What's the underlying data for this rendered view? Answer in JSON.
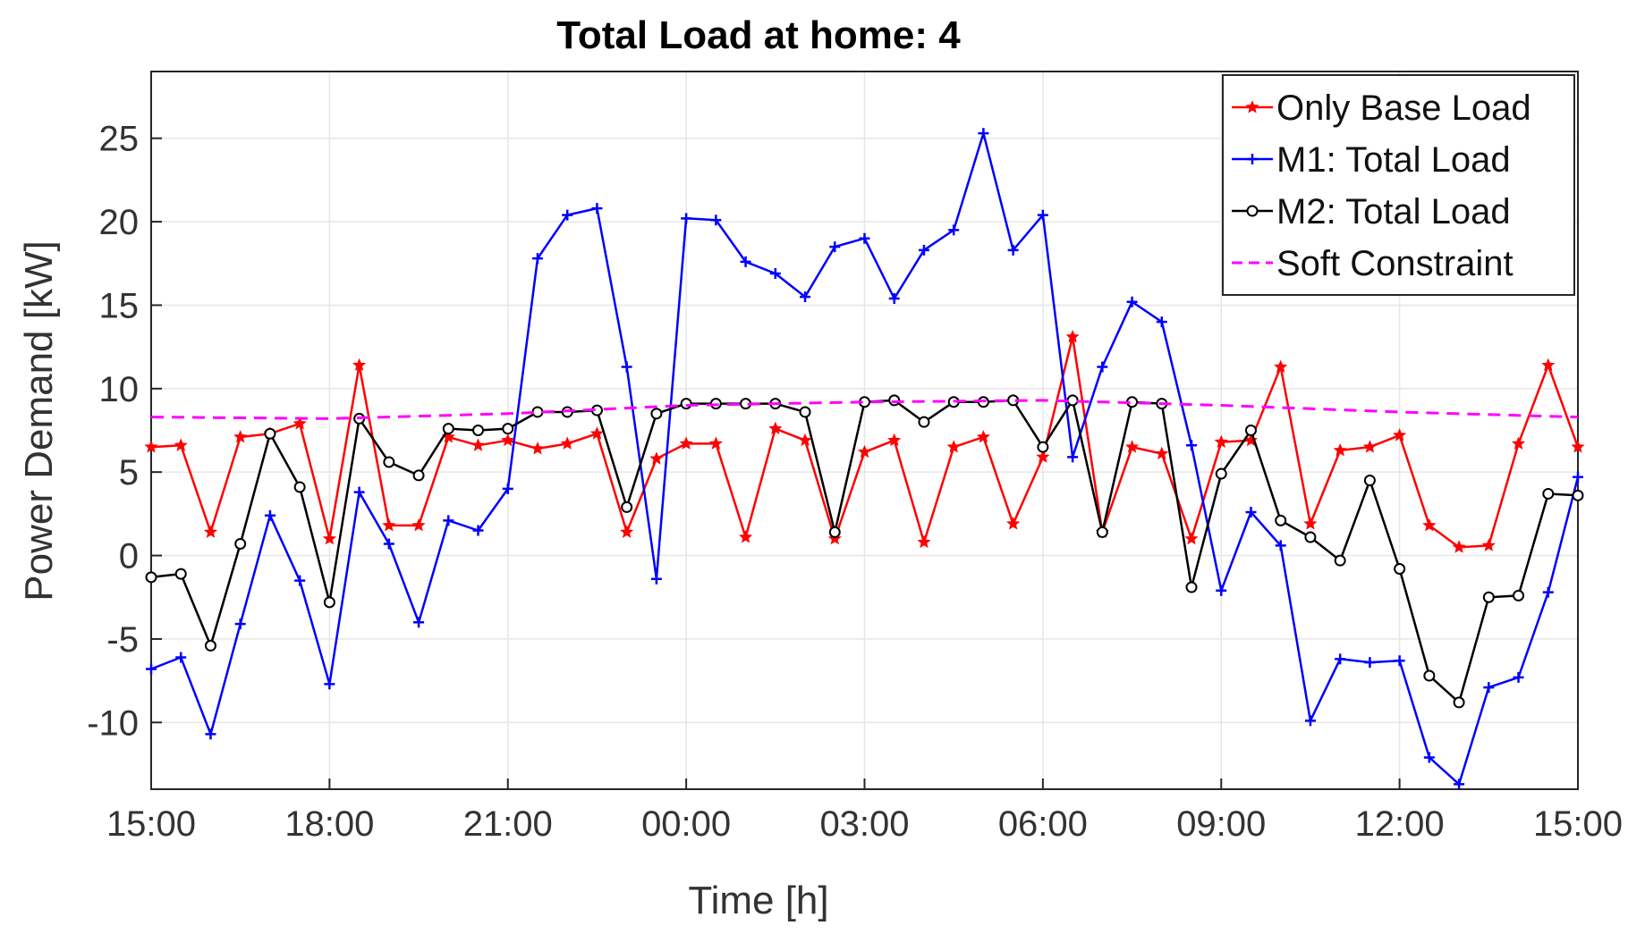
{
  "chart_data": {
    "type": "line",
    "title": "Total Load at home: 4",
    "xlabel": "Time [h]",
    "ylabel": "Power Demand [kW]",
    "x_unit": "hours since 15:00",
    "xlim": [
      0,
      24
    ],
    "ylim": [
      -14,
      29
    ],
    "x_tick_values": [
      0,
      3,
      6,
      9,
      12,
      15,
      18,
      21,
      24
    ],
    "x_tick_labels": [
      "15:00",
      "18:00",
      "21:00",
      "00:00",
      "03:00",
      "06:00",
      "09:00",
      "12:00",
      "15:00"
    ],
    "y_ticks": [
      -10,
      -5,
      0,
      5,
      10,
      15,
      20,
      25
    ],
    "grid": true,
    "legend_position": "top-right",
    "x": [
      0,
      0.5,
      1,
      1.5,
      2,
      2.5,
      3,
      3.5,
      4,
      4.5,
      5,
      5.5,
      6,
      6.5,
      7,
      7.5,
      8,
      8.5,
      9,
      9.5,
      10,
      10.5,
      11,
      11.5,
      12,
      12.5,
      13,
      13.5,
      14,
      14.5,
      15,
      15.5,
      16,
      16.5,
      17,
      17.5,
      18,
      18.5,
      19,
      19.5,
      20,
      20.5,
      21,
      21.5,
      22,
      22.5,
      23,
      23.5,
      24
    ],
    "series": [
      {
        "name": "Only Base Load",
        "color": "#ff0000",
        "marker": "star",
        "values": [
          6.5,
          6.6,
          1.4,
          7.1,
          7.3,
          7.9,
          1.0,
          11.4,
          1.8,
          1.8,
          7.1,
          6.6,
          6.9,
          6.4,
          6.7,
          7.3,
          1.4,
          5.8,
          6.7,
          6.7,
          1.1,
          7.6,
          6.9,
          1.0,
          6.2,
          6.9,
          0.8,
          6.5,
          7.1,
          1.9,
          5.9,
          13.1,
          1.4,
          6.5,
          6.1,
          1.0,
          6.8,
          6.9,
          11.3,
          1.9,
          6.3,
          6.5,
          7.2,
          1.8,
          0.5,
          0.6,
          6.7,
          11.4,
          6.5
        ]
      },
      {
        "name": "M1: Total Load",
        "color": "#0000ff",
        "marker": "plus",
        "values": [
          -6.8,
          -6.1,
          -10.7,
          -4.1,
          2.4,
          -1.5,
          -7.7,
          3.8,
          0.7,
          -4.0,
          2.1,
          1.5,
          4.0,
          17.8,
          20.4,
          20.8,
          11.3,
          -1.4,
          20.2,
          20.1,
          17.6,
          16.9,
          15.5,
          18.5,
          19.0,
          15.4,
          18.3,
          19.5,
          25.3,
          18.3,
          20.4,
          5.9,
          11.3,
          15.2,
          14.0,
          6.6,
          -2.1,
          2.6,
          0.6,
          -9.9,
          -6.2,
          -6.4,
          -6.3,
          -12.1,
          -13.7,
          -7.9,
          -7.3,
          -2.2,
          4.7
        ]
      },
      {
        "name": "M2: Total Load",
        "color": "#000000",
        "marker": "circle",
        "values": [
          -1.3,
          -1.1,
          -5.4,
          0.7,
          7.3,
          4.1,
          -2.8,
          8.2,
          5.6,
          4.8,
          7.6,
          7.5,
          7.6,
          8.6,
          8.6,
          8.7,
          2.9,
          8.5,
          9.1,
          9.1,
          9.1,
          9.1,
          8.6,
          1.4,
          9.2,
          9.3,
          8.0,
          9.2,
          9.2,
          9.3,
          6.5,
          9.3,
          1.4,
          9.2,
          9.1,
          -1.9,
          4.9,
          7.5,
          2.1,
          1.1,
          -0.3,
          4.5,
          -0.8,
          -7.2,
          -8.8,
          -2.5,
          -2.4,
          3.7,
          3.6
        ]
      },
      {
        "name": "Soft Constraint",
        "color": "#ff00ff",
        "marker": "none",
        "dashed": true,
        "x": [
          0,
          3,
          6,
          9,
          10.5,
          12,
          15,
          18,
          21,
          24
        ],
        "values": [
          8.3,
          8.2,
          8.5,
          9.0,
          9.1,
          9.2,
          9.3,
          9.0,
          8.6,
          8.3
        ]
      }
    ]
  }
}
